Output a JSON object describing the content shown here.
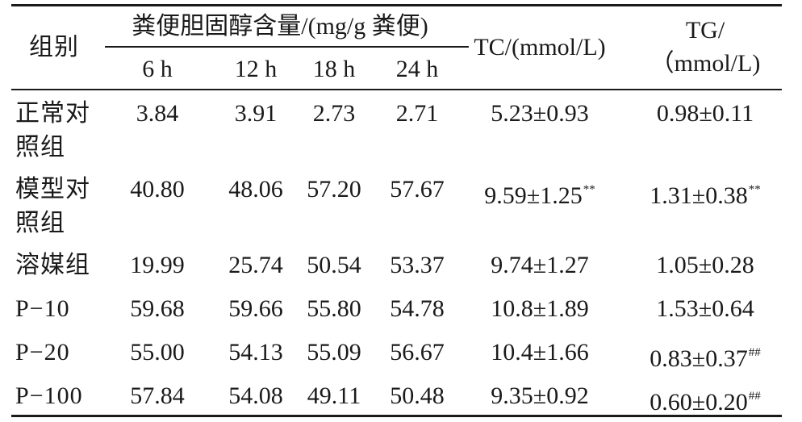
{
  "header": {
    "group_label": "组别",
    "fecal_span": "粪便胆固醇含量/(mg/g 粪便)",
    "times": [
      "6 h",
      "12 h",
      "18 h",
      "24 h"
    ],
    "tc_label": "TC/(mmol/L)",
    "tg_label_line1": "TG/",
    "tg_label_line2": "（mmol/L)"
  },
  "rows": [
    {
      "group_l1": "正常对",
      "group_l2": "照组",
      "v6": "3.84",
      "v12": "3.91",
      "v18": "2.73",
      "v24": "2.71",
      "tc": "5.23±0.93",
      "tc_sig": "",
      "tg": "0.98±0.11",
      "tg_sig": ""
    },
    {
      "group_l1": "模型对",
      "group_l2": "照组",
      "v6": "40.80",
      "v12": "48.06",
      "v18": "57.20",
      "v24": "57.67",
      "tc": "9.59±1.25",
      "tc_sig": "**",
      "tg": "1.31±0.38",
      "tg_sig": "**"
    },
    {
      "group_l1": "溶媒组",
      "group_l2": "",
      "v6": "19.99",
      "v12": "25.74",
      "v18": "50.54",
      "v24": "53.37",
      "tc": "9.74±1.27",
      "tc_sig": "",
      "tg": "1.05±0.28",
      "tg_sig": ""
    },
    {
      "group_l1": "P−10",
      "group_l2": "",
      "v6": "59.68",
      "v12": "59.66",
      "v18": "55.80",
      "v24": "54.78",
      "tc": "10.8±1.89",
      "tc_sig": "",
      "tg": "1.53±0.64",
      "tg_sig": ""
    },
    {
      "group_l1": "P−20",
      "group_l2": "",
      "v6": "55.00",
      "v12": "54.13",
      "v18": "55.09",
      "v24": "56.67",
      "tc": "10.4±1.66",
      "tc_sig": "",
      "tg": "0.83±0.37",
      "tg_sig": "##"
    },
    {
      "group_l1": "P−100",
      "group_l2": "",
      "v6": "57.84",
      "v12": "54.08",
      "v18": "49.11",
      "v24": "50.48",
      "tc": "9.35±0.92",
      "tc_sig": "",
      "tg": "0.60±0.20",
      "tg_sig": "##"
    }
  ]
}
